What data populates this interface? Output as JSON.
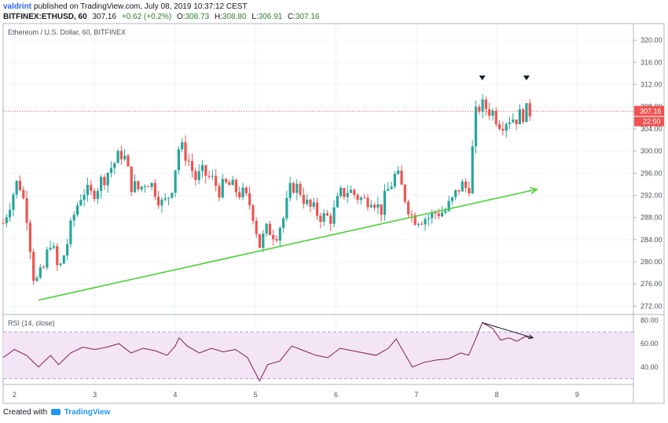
{
  "header": {
    "user": "valdrint",
    "published_text": "published on TradingView.com, July 08, 2019 10:37:12 CEST",
    "symbol": "BITFINEX:ETHUSD, 60",
    "last": "307.16",
    "change": "+0.62 (+0.2%)",
    "o_label": "O:",
    "o_value": "308.73",
    "h_label": "H:",
    "h_value": "308.80",
    "l_label": "L:",
    "l_value": "306.91",
    "c_label": "C:",
    "c_value": "307.16"
  },
  "legend": "Ethereum / U.S. Dollar, 60, BITFINEX",
  "price_tag": "307.16",
  "time_tag": "22:50",
  "rsi_legend": "RSI (14, close)",
  "footer": {
    "created_with": "Created with",
    "brand": "TradingView"
  },
  "colors": {
    "up": "#26a69a",
    "down": "#ef5350",
    "trend": "#4cd137",
    "rsi": "#7b1f56",
    "rsi_band": "#f3e5f5",
    "tag": "#ef5350"
  },
  "chart_data": [
    {
      "type": "candlestick",
      "title": "Ethereum / U.S. Dollar, 60, BITFINEX",
      "x_axis": {
        "ticks": [
          "2",
          "3",
          "4",
          "5",
          "6",
          "7",
          "8",
          "9"
        ]
      },
      "y_axis": {
        "ticks": [
          272,
          276,
          280,
          284,
          288,
          292,
          296,
          300,
          304,
          308,
          312,
          316,
          320
        ],
        "range": [
          270.5,
          323
        ]
      },
      "last_price": 307.16,
      "trendline": {
        "points": [
          [
            2.3,
            273.1
          ],
          [
            8.5,
            293.1
          ]
        ],
        "arrow": true
      },
      "markers": [
        {
          "type": "down-triangle",
          "x": 7.82,
          "y": 313.2
        },
        {
          "type": "down-triangle",
          "x": 8.37,
          "y": 313.2
        }
      ],
      "keypoints": [
        [
          1.86,
          287
        ],
        [
          1.95,
          291
        ],
        [
          2.05,
          295
        ],
        [
          2.15,
          289
        ],
        [
          2.25,
          276
        ],
        [
          2.35,
          278
        ],
        [
          2.45,
          284
        ],
        [
          2.55,
          278
        ],
        [
          2.65,
          283
        ],
        [
          2.75,
          289
        ],
        [
          2.85,
          293
        ],
        [
          2.95,
          292
        ],
        [
          3.05,
          294
        ],
        [
          3.15,
          296
        ],
        [
          3.25,
          298
        ],
        [
          3.35,
          300
        ],
        [
          3.45,
          294
        ],
        [
          3.55,
          293
        ],
        [
          3.65,
          295
        ],
        [
          3.75,
          293
        ],
        [
          3.85,
          290
        ],
        [
          3.95,
          293
        ],
        [
          4.05,
          301
        ],
        [
          4.15,
          299
        ],
        [
          4.25,
          295
        ],
        [
          4.35,
          296
        ],
        [
          4.45,
          295
        ],
        [
          4.55,
          293
        ],
        [
          4.65,
          294
        ],
        [
          4.75,
          293
        ],
        [
          4.85,
          292
        ],
        [
          4.95,
          290
        ],
        [
          5.05,
          283
        ],
        [
          5.15,
          286
        ],
        [
          5.25,
          285
        ],
        [
          5.35,
          288
        ],
        [
          5.45,
          294
        ],
        [
          5.55,
          293
        ],
        [
          5.65,
          290
        ],
        [
          5.75,
          289
        ],
        [
          5.85,
          288
        ],
        [
          5.95,
          288
        ],
        [
          6.05,
          292
        ],
        [
          6.15,
          293
        ],
        [
          6.25,
          292
        ],
        [
          6.35,
          291
        ],
        [
          6.45,
          292
        ],
        [
          6.55,
          289
        ],
        [
          6.65,
          293
        ],
        [
          6.75,
          296
        ],
        [
          6.85,
          292
        ],
        [
          6.95,
          288
        ],
        [
          7.05,
          288
        ],
        [
          7.15,
          288
        ],
        [
          7.25,
          289
        ],
        [
          7.35,
          289
        ],
        [
          7.45,
          291
        ],
        [
          7.55,
          294
        ],
        [
          7.65,
          293
        ],
        [
          7.75,
          308
        ],
        [
          7.85,
          308
        ],
        [
          7.95,
          307
        ],
        [
          8.05,
          305
        ],
        [
          8.15,
          306
        ],
        [
          8.25,
          306
        ],
        [
          8.35,
          307
        ],
        [
          8.42,
          307.16
        ]
      ]
    },
    {
      "type": "line",
      "title": "RSI (14, close)",
      "y_axis": {
        "ticks": [
          40,
          60,
          80
        ],
        "range": [
          25,
          85
        ]
      },
      "bands": [
        30,
        70
      ],
      "divergence_line": {
        "points": [
          [
            7.82,
            78
          ],
          [
            8.45,
            65
          ]
        ],
        "arrow": true
      },
      "keypoints": [
        [
          1.86,
          48
        ],
        [
          2.0,
          55
        ],
        [
          2.15,
          50
        ],
        [
          2.3,
          40
        ],
        [
          2.45,
          50
        ],
        [
          2.55,
          42
        ],
        [
          2.7,
          52
        ],
        [
          2.85,
          57
        ],
        [
          3.0,
          55
        ],
        [
          3.15,
          57
        ],
        [
          3.3,
          60
        ],
        [
          3.45,
          52
        ],
        [
          3.6,
          56
        ],
        [
          3.75,
          54
        ],
        [
          3.9,
          50
        ],
        [
          4.0,
          58
        ],
        [
          4.05,
          65
        ],
        [
          4.15,
          58
        ],
        [
          4.3,
          52
        ],
        [
          4.45,
          56
        ],
        [
          4.6,
          53
        ],
        [
          4.75,
          55
        ],
        [
          4.9,
          48
        ],
        [
          5.05,
          28
        ],
        [
          5.15,
          42
        ],
        [
          5.3,
          45
        ],
        [
          5.45,
          58
        ],
        [
          5.6,
          54
        ],
        [
          5.75,
          50
        ],
        [
          5.9,
          48
        ],
        [
          6.05,
          56
        ],
        [
          6.2,
          54
        ],
        [
          6.35,
          52
        ],
        [
          6.5,
          50
        ],
        [
          6.65,
          56
        ],
        [
          6.75,
          64
        ],
        [
          6.85,
          52
        ],
        [
          6.95,
          40
        ],
        [
          7.1,
          44
        ],
        [
          7.25,
          46
        ],
        [
          7.4,
          47
        ],
        [
          7.55,
          52
        ],
        [
          7.65,
          50
        ],
        [
          7.75,
          66
        ],
        [
          7.82,
          78
        ],
        [
          7.95,
          73
        ],
        [
          8.05,
          63
        ],
        [
          8.15,
          65
        ],
        [
          8.25,
          62
        ],
        [
          8.35,
          66
        ],
        [
          8.45,
          65
        ]
      ]
    }
  ]
}
